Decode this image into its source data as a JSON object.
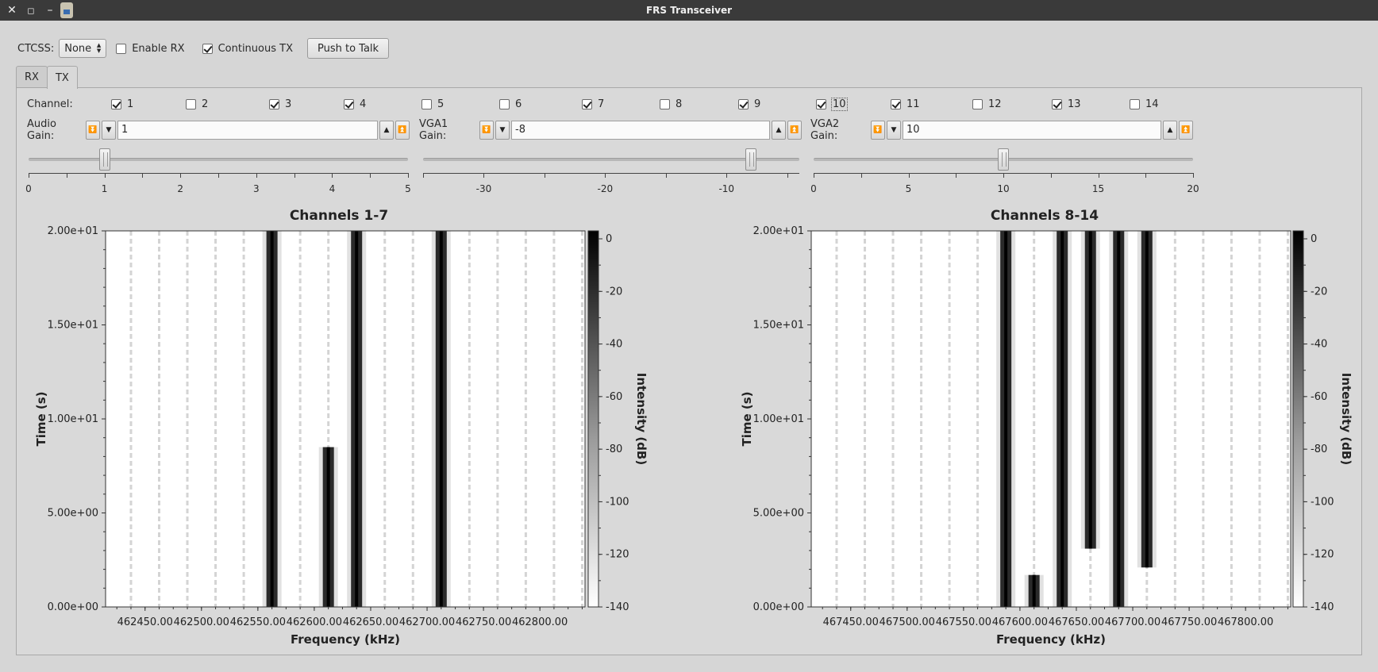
{
  "window": {
    "title": "FRS Transceiver"
  },
  "controls": {
    "ctcss_label": "CTCSS:",
    "ctcss_value": "None",
    "enable_rx_label": "Enable RX",
    "enable_rx": false,
    "continuous_tx_label": "Continuous TX",
    "continuous_tx": true,
    "ptt_label": "Push to Talk"
  },
  "tabs": [
    {
      "label": "RX",
      "active": false
    },
    {
      "label": "TX",
      "active": true
    }
  ],
  "channel_label": "Channel:",
  "channels": [
    {
      "n": "1",
      "on": true
    },
    {
      "n": "2",
      "on": false
    },
    {
      "n": "3",
      "on": true
    },
    {
      "n": "4",
      "on": true
    },
    {
      "n": "5",
      "on": false
    },
    {
      "n": "6",
      "on": false
    },
    {
      "n": "7",
      "on": true
    },
    {
      "n": "8",
      "on": false
    },
    {
      "n": "9",
      "on": true
    },
    {
      "n": "10",
      "on": true
    },
    {
      "n": "11",
      "on": true
    },
    {
      "n": "12",
      "on": false
    },
    {
      "n": "13",
      "on": true
    },
    {
      "n": "14",
      "on": false
    }
  ],
  "gains": [
    {
      "label": "Audio Gain:",
      "value": "1",
      "min": 0,
      "max": 5,
      "ticks": [
        "0",
        "1",
        "2",
        "3",
        "4",
        "5"
      ],
      "level": 1
    },
    {
      "label": "VGA1 Gain:",
      "value": "-8",
      "min": -35,
      "max": -4,
      "ticks": [
        "-30",
        "-20",
        "-10"
      ],
      "level": -8
    },
    {
      "label": "VGA2 Gain:",
      "value": "10",
      "min": 0,
      "max": 20,
      "ticks": [
        "0",
        "5",
        "10",
        "15",
        "20"
      ],
      "level": 10
    }
  ],
  "chart_data": [
    {
      "type": "heatmap",
      "title": "Channels 1-7",
      "xlabel": "Frequency (kHz)",
      "ylabel": "Time (s)",
      "colorbar_label": "Intensity (dB)",
      "x_ticks": [
        "462450.00",
        "462500.00",
        "462550.00",
        "462600.00",
        "462650.00",
        "462700.00",
        "462750.00",
        "462800.00"
      ],
      "y_ticks": [
        "0.00e+00",
        "5.00e+00",
        "1.00e+01",
        "1.50e+01",
        "2.00e+01"
      ],
      "colorbar_ticks": [
        "0",
        "-20",
        "-40",
        "-60",
        "-80",
        "-100",
        "-120",
        "-140"
      ],
      "xlim": [
        462415,
        462840
      ],
      "ylim": [
        0,
        20
      ],
      "carriers": [
        {
          "freq": 462562.5,
          "t_start": 0,
          "t_end": 20
        },
        {
          "freq": 462612.5,
          "t_start": 0,
          "t_end": 8.5
        },
        {
          "freq": 462637.5,
          "t_start": 0,
          "t_end": 20
        },
        {
          "freq": 462712.5,
          "t_start": 0,
          "t_end": 20
        }
      ]
    },
    {
      "type": "heatmap",
      "title": "Channels 8-14",
      "xlabel": "Frequency (kHz)",
      "ylabel": "Time (s)",
      "colorbar_label": "Intensity (dB)",
      "x_ticks": [
        "467450.00",
        "467500.00",
        "467550.00",
        "467600.00",
        "467650.00",
        "467700.00",
        "467750.00",
        "467800.00"
      ],
      "y_ticks": [
        "0.00e+00",
        "5.00e+00",
        "1.00e+01",
        "1.50e+01",
        "2.00e+01"
      ],
      "colorbar_ticks": [
        "0",
        "-20",
        "-40",
        "-60",
        "-80",
        "-100",
        "-120",
        "-140"
      ],
      "xlim": [
        467415,
        467840
      ],
      "ylim": [
        0,
        20
      ],
      "carriers": [
        {
          "freq": 467587.5,
          "t_start": 0,
          "t_end": 20
        },
        {
          "freq": 467612.5,
          "t_start": 0,
          "t_end": 1.7
        },
        {
          "freq": 467637.5,
          "t_start": 0,
          "t_end": 20
        },
        {
          "freq": 467662.5,
          "t_start": 3.1,
          "t_end": 20
        },
        {
          "freq": 467687.5,
          "t_start": 0,
          "t_end": 20
        },
        {
          "freq": 467712.5,
          "t_start": 2.1,
          "t_end": 20
        }
      ]
    }
  ]
}
